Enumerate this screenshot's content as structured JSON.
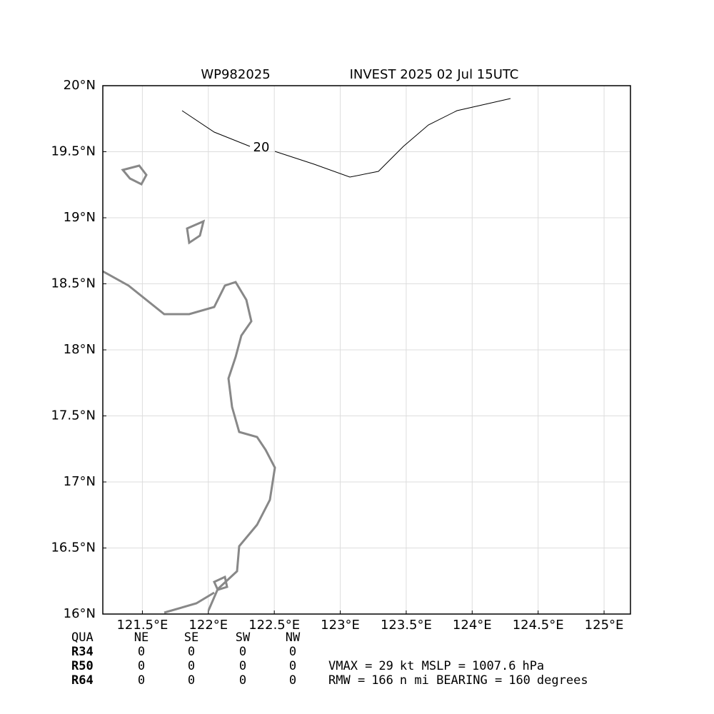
{
  "chart_data": {
    "type": "map",
    "title_left": "WP982025",
    "title_right": "INVEST 2025 02 Jul 15UTC",
    "xlim": [
      121.2,
      125.2
    ],
    "ylim": [
      16,
      20
    ],
    "xticks": [
      {
        "value": 121.5,
        "label": "121.5°E"
      },
      {
        "value": 122,
        "label": "122°E"
      },
      {
        "value": 122.5,
        "label": "122.5°E"
      },
      {
        "value": 123,
        "label": "123°E"
      },
      {
        "value": 123.5,
        "label": "123.5°E"
      },
      {
        "value": 124,
        "label": "124°E"
      },
      {
        "value": 124.5,
        "label": "124.5°E"
      },
      {
        "value": 125,
        "label": "125°E"
      }
    ],
    "yticks": [
      {
        "value": 16,
        "label": "16°N"
      },
      {
        "value": 16.5,
        "label": "16.5°N"
      },
      {
        "value": 17,
        "label": "17°N"
      },
      {
        "value": 17.5,
        "label": "17.5°N"
      },
      {
        "value": 18,
        "label": "18°N"
      },
      {
        "value": 18.5,
        "label": "18.5°N"
      },
      {
        "value": 19,
        "label": "19°N"
      },
      {
        "value": 19.5,
        "label": "19.5°N"
      },
      {
        "value": 20,
        "label": "20°N"
      }
    ],
    "grid": true,
    "contour_label": 20,
    "table": {
      "header": [
        "QUA",
        "NE",
        "SE",
        "SW",
        "NW"
      ],
      "rows": [
        {
          "name": "R34",
          "values": [
            0,
            0,
            0,
            0
          ]
        },
        {
          "name": "R50",
          "values": [
            0,
            0,
            0,
            0
          ]
        },
        {
          "name": "R64",
          "values": [
            0,
            0,
            0,
            0
          ]
        }
      ]
    },
    "info": {
      "vmax_label": "VMAX =",
      "vmax": 29,
      "vmax_unit": "kt MSLP =",
      "mslp": 1007.6,
      "mslp_unit": "hPa",
      "rmw_label": "RMW =",
      "rmw": 166,
      "rmw_unit": "n mi BEARING =",
      "bearing": 160,
      "bearing_unit": "degrees"
    }
  }
}
